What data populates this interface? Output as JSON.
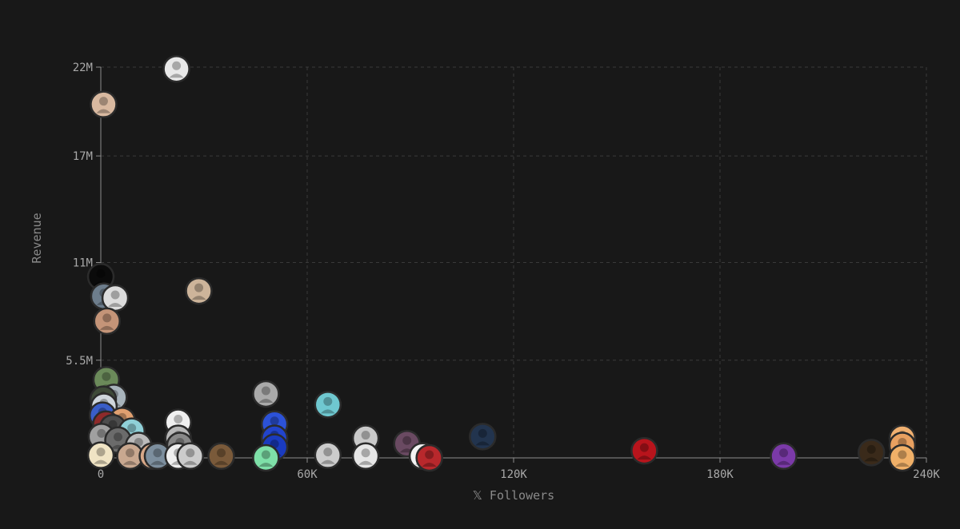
{
  "chart_data": {
    "type": "scatter",
    "title": "",
    "xlabel": "𝕏 Followers",
    "ylabel": "Revenue",
    "xlim": [
      0,
      240000
    ],
    "ylim": [
      0,
      22000000
    ],
    "x_ticks": [
      {
        "value": 0,
        "label": "0"
      },
      {
        "value": 60000,
        "label": "60K"
      },
      {
        "value": 120000,
        "label": "120K"
      },
      {
        "value": 180000,
        "label": "180K"
      },
      {
        "value": 240000,
        "label": "240K"
      }
    ],
    "y_ticks": [
      {
        "value": 5500000,
        "label": "5.5M"
      },
      {
        "value": 11000000,
        "label": "11M"
      },
      {
        "value": 17000000,
        "label": "17M"
      },
      {
        "value": 22000000,
        "label": "22M"
      }
    ],
    "grid": true,
    "legend": "none",
    "points": [
      {
        "x": 22000,
        "y": 21900000,
        "color": "#e8e8e8"
      },
      {
        "x": 800,
        "y": 19900000,
        "color": "#d9b9a0"
      },
      {
        "x": 28500,
        "y": 9400000,
        "color": "#cdb49a"
      },
      {
        "x": 0,
        "y": 10200000,
        "color": "#0b0b0b"
      },
      {
        "x": 900,
        "y": 9100000,
        "color": "#6d7d8c"
      },
      {
        "x": 4200,
        "y": 9000000,
        "color": "#dcdcdc"
      },
      {
        "x": 1800,
        "y": 7700000,
        "color": "#c49478"
      },
      {
        "x": 1600,
        "y": 4400000,
        "color": "#6b8a5a"
      },
      {
        "x": 3800,
        "y": 3400000,
        "color": "#a8b4bc"
      },
      {
        "x": 700,
        "y": 3300000,
        "color": "#3e4a38"
      },
      {
        "x": 900,
        "y": 2900000,
        "color": "#cfd6dc"
      },
      {
        "x": 500,
        "y": 2400000,
        "color": "#3a5ec8"
      },
      {
        "x": 6200,
        "y": 2100000,
        "color": "#e0a070"
      },
      {
        "x": 1500,
        "y": 1900000,
        "color": "#8e2a2a"
      },
      {
        "x": 3500,
        "y": 1700000,
        "color": "#4d4d4d"
      },
      {
        "x": 9000,
        "y": 1500000,
        "color": "#8fd0d8"
      },
      {
        "x": 200,
        "y": 1200000,
        "color": "#a0a0a0"
      },
      {
        "x": 5000,
        "y": 1000000,
        "color": "#6b6b6b"
      },
      {
        "x": 11000,
        "y": 700000,
        "color": "#bbbbbb"
      },
      {
        "x": 22500,
        "y": 2000000,
        "color": "#f0f0f0"
      },
      {
        "x": 22500,
        "y": 1100000,
        "color": "#b7b7b7"
      },
      {
        "x": 23000,
        "y": 700000,
        "color": "#888888"
      },
      {
        "x": 0,
        "y": 150000,
        "color": "#f0e4c4"
      },
      {
        "x": 8500,
        "y": 100000,
        "color": "#c9a890"
      },
      {
        "x": 15000,
        "y": 100000,
        "color": "#d8a888"
      },
      {
        "x": 16500,
        "y": 100000,
        "color": "#7d8f9e"
      },
      {
        "x": 22500,
        "y": 100000,
        "color": "#efefef"
      },
      {
        "x": 26000,
        "y": 100000,
        "color": "#cccccc"
      },
      {
        "x": 35000,
        "y": 100000,
        "color": "#7a5a3a"
      },
      {
        "x": 48000,
        "y": 3600000,
        "color": "#aaaaaa"
      },
      {
        "x": 50500,
        "y": 1900000,
        "color": "#2c52d8"
      },
      {
        "x": 50500,
        "y": 1100000,
        "color": "#2244cc"
      },
      {
        "x": 50500,
        "y": 600000,
        "color": "#1a3bbf"
      },
      {
        "x": 48000,
        "y": 0,
        "color": "#7ee0a8"
      },
      {
        "x": 66000,
        "y": 3000000,
        "color": "#6fc8d0"
      },
      {
        "x": 66000,
        "y": 150000,
        "color": "#cccccc"
      },
      {
        "x": 77000,
        "y": 1100000,
        "color": "#c9c9c9"
      },
      {
        "x": 77000,
        "y": 100000,
        "color": "#e6e6e6"
      },
      {
        "x": 89000,
        "y": 800000,
        "color": "#6a4a62"
      },
      {
        "x": 93500,
        "y": 100000,
        "color": "#f3f3f3"
      },
      {
        "x": 95500,
        "y": 0,
        "color": "#b8282c"
      },
      {
        "x": 111000,
        "y": 1200000,
        "color": "#22344e"
      },
      {
        "x": 158000,
        "y": 400000,
        "color": "#b8141c"
      },
      {
        "x": 198500,
        "y": 100000,
        "color": "#7b3aa8"
      },
      {
        "x": 224000,
        "y": 300000,
        "color": "#3a2a1a"
      },
      {
        "x": 233000,
        "y": 1100000,
        "color": "#f0b070"
      },
      {
        "x": 233000,
        "y": 700000,
        "color": "#e8a060"
      },
      {
        "x": 233000,
        "y": 0,
        "color": "#f0b068"
      }
    ]
  }
}
